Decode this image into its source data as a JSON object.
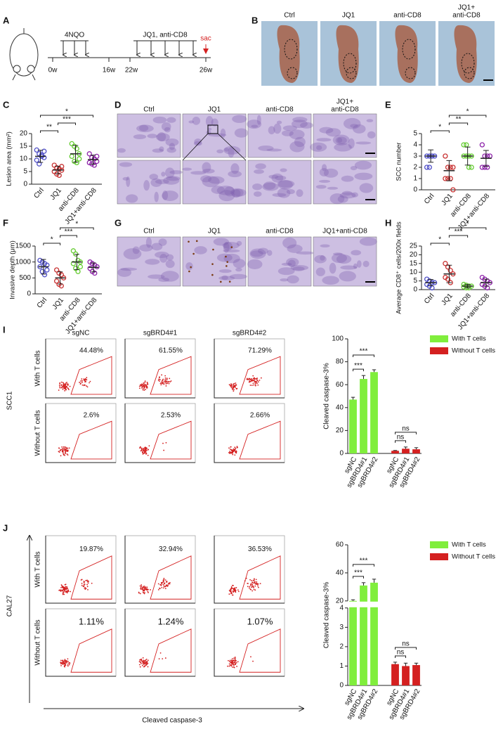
{
  "panel_labels": [
    "A",
    "B",
    "C",
    "D",
    "E",
    "F",
    "G",
    "H",
    "I",
    "J"
  ],
  "timeline": {
    "treatment_1": "4NQO",
    "treatment_2": "JQ1, anti-CD8",
    "endpoint": "sac",
    "weeks": [
      "0w",
      "16w",
      "22w",
      "26w"
    ]
  },
  "photos": {
    "labels": [
      "Ctrl",
      "JQ1",
      "anti-CD8",
      [
        "JQ1+",
        "anti-CD8"
      ]
    ]
  },
  "histology_he": {
    "labels": [
      "Ctrl",
      "JQ1",
      "anti-CD8",
      [
        "JQ1+",
        "anti-CD8"
      ]
    ]
  },
  "histology_ihc": {
    "labels": [
      "Ctrl",
      "JQ1",
      "anti-CD8",
      "JQ1+anti-CD8"
    ]
  },
  "flow": {
    "columns": [
      "sgNC",
      "sgBRD4#1",
      "sgBRD4#2"
    ],
    "rows": [
      "With T cells",
      "Without T cells"
    ],
    "x_label": "Cleaved caspase-3",
    "SCC1": {
      "cell_line": "SCC1",
      "percentages": [
        [
          "44.48%",
          "61.55%",
          "71.29%"
        ],
        [
          "2.6%",
          "2.53%",
          "2.66%"
        ]
      ]
    },
    "CAL27": {
      "cell_line": "CAL27",
      "percentages": [
        [
          "19.87%",
          "32.94%",
          "36.53%"
        ],
        [
          "1.11%",
          "1.24%",
          "1.07%"
        ]
      ]
    }
  },
  "chart_data": [
    {
      "type": "dotplot",
      "ylabel": "Lesion area (mm²)",
      "categories": [
        "Ctrl",
        "JQ1",
        "anti-CD8",
        "JQ1+anti-CD8"
      ],
      "colors": [
        "#5050c8",
        "#c83232",
        "#66cc33",
        "#8e24aa"
      ],
      "points": [
        [
          13.5,
          12,
          11.5,
          10.5,
          9.5,
          8,
          11,
          13
        ],
        [
          7.5,
          6.5,
          6,
          5.5,
          5,
          4,
          3.5,
          7
        ],
        [
          16,
          15,
          14,
          12,
          11,
          9,
          8.5,
          10
        ],
        [
          12,
          10.5,
          10,
          9,
          8.5,
          8,
          7.5,
          11
        ]
      ],
      "means": [
        11,
        5.6,
        12,
        9.7
      ],
      "sd": [
        2.4,
        1.5,
        3.3,
        1.8
      ],
      "ylim": [
        0,
        20
      ],
      "yticks": [
        0,
        5,
        10,
        15,
        20
      ],
      "significance": [
        {
          "from": "Ctrl",
          "to": "JQ1",
          "label": "**"
        },
        {
          "from": "JQ1",
          "to": "anti-CD8",
          "label": "***"
        },
        {
          "from": "Ctrl",
          "to": "JQ1+anti-CD8",
          "label": "*"
        }
      ]
    },
    {
      "type": "dotplot",
      "ylabel": "SCC number",
      "categories": [
        "Ctrl",
        "JQ1",
        "anti-CD8",
        "JQ1+anti-CD8"
      ],
      "colors": [
        "#5050c8",
        "#c83232",
        "#66cc33",
        "#8e24aa"
      ],
      "points": [
        [
          3,
          3,
          3,
          3,
          2,
          2,
          3
        ],
        [
          3,
          2,
          2,
          2,
          1,
          1,
          1,
          0
        ],
        [
          4,
          4,
          3,
          3,
          3,
          3,
          2,
          2
        ],
        [
          4,
          3,
          3,
          3,
          2,
          2,
          2
        ]
      ],
      "means": [
        3,
        1.7,
        3,
        2.8
      ],
      "sd": [
        0.55,
        0.9,
        0.8,
        0.7
      ],
      "ylim": [
        0,
        5
      ],
      "yticks": [
        0,
        1,
        2,
        3,
        4,
        5
      ],
      "significance": [
        {
          "from": "Ctrl",
          "to": "JQ1",
          "label": "*"
        },
        {
          "from": "JQ1",
          "to": "anti-CD8",
          "label": "**"
        },
        {
          "from": "JQ1",
          "to": "JQ1+anti-CD8",
          "label": "*"
        }
      ]
    },
    {
      "type": "dotplot",
      "ylabel": "Invasive depth (μm)",
      "categories": [
        "Ctrl",
        "JQ1",
        "anti-CD8",
        "JQ1+anti-CD8"
      ],
      "colors": [
        "#5050c8",
        "#c83232",
        "#66cc33",
        "#8e24aa"
      ],
      "points": [
        [
          1050,
          1000,
          950,
          900,
          850,
          700,
          600,
          750
        ],
        [
          750,
          650,
          600,
          500,
          400,
          300,
          250
        ],
        [
          1350,
          1250,
          1050,
          1000,
          950,
          800,
          700,
          850
        ],
        [
          1000,
          950,
          900,
          850,
          800,
          700,
          650
        ]
      ],
      "means": [
        850,
        500,
        1000,
        830
      ],
      "sd": [
        230,
        190,
        240,
        140
      ],
      "ylim": [
        0,
        1500
      ],
      "yticks": [
        0,
        500,
        1000,
        1500
      ],
      "significance": [
        {
          "from": "Ctrl",
          "to": "JQ1",
          "label": "*"
        },
        {
          "from": "JQ1",
          "to": "anti-CD8",
          "label": "***"
        },
        {
          "from": "JQ1",
          "to": "JQ1+anti-CD8",
          "label": "*"
        }
      ]
    },
    {
      "type": "dotplot",
      "ylabel": "Average CD8⁺ cells/200x fields",
      "categories": [
        "Ctrl",
        "JQ1",
        "anti-CD8",
        "JQ1+anti-CD8"
      ],
      "colors": [
        "#5050c8",
        "#c83232",
        "#66cc33",
        "#8e24aa"
      ],
      "points": [
        [
          6,
          5,
          4,
          4,
          3,
          2,
          1
        ],
        [
          15,
          13,
          11,
          9,
          7,
          6,
          4
        ],
        [
          3,
          2.5,
          2,
          2,
          1.5,
          1,
          1
        ],
        [
          7,
          6,
          5,
          4,
          3,
          2,
          1
        ]
      ],
      "means": [
        4,
        9,
        2,
        4
      ],
      "sd": [
        1.8,
        5,
        1,
        2
      ],
      "ylim": [
        0,
        25
      ],
      "yticks": [
        0,
        5,
        10,
        15,
        20,
        25
      ],
      "significance": [
        {
          "from": "Ctrl",
          "to": "JQ1",
          "label": "*"
        },
        {
          "from": "JQ1",
          "to": "anti-CD8",
          "label": "***"
        },
        {
          "from": "JQ1",
          "to": "JQ1+anti-CD8",
          "label": "*"
        }
      ]
    },
    {
      "type": "bar",
      "ylabel": "Cleaved caspase-3%",
      "categories": [
        "sgNC",
        "sgBRD4#1",
        "sgBRD4#2"
      ],
      "series": [
        {
          "name": "With T cells",
          "color": "#80ee3c",
          "values": [
            47,
            65,
            71
          ],
          "errors": [
            2,
            3,
            2
          ]
        },
        {
          "name": "Without T cells",
          "color": "#d42020",
          "values": [
            2.3,
            4.1,
            3.6
          ],
          "errors": [
            0.3,
            1.5,
            1.4
          ]
        }
      ],
      "ylim": [
        0,
        100
      ],
      "yticks": [
        0,
        20,
        40,
        60,
        80,
        100
      ],
      "significance": [
        {
          "series": "With T cells",
          "from": "sgNC",
          "to": "sgBRD4#1",
          "label": "***"
        },
        {
          "series": "With T cells",
          "from": "sgNC",
          "to": "sgBRD4#2",
          "label": "***"
        },
        {
          "series": "Without T cells",
          "from": "sgNC",
          "to": "sgBRD4#1",
          "label": "ns"
        },
        {
          "series": "Without T cells",
          "from": "sgNC",
          "to": "sgBRD4#2",
          "label": "ns"
        }
      ]
    },
    {
      "type": "bar",
      "ylabel": "Cleaved caspase-3%",
      "categories": [
        "sgNC",
        "sgBRD4#1",
        "sgBRD4#2"
      ],
      "series": [
        {
          "name": "With T cells",
          "color": "#80ee3c",
          "values": [
            20,
            31,
            33
          ],
          "errors": [
            0.8,
            2,
            2.5
          ]
        },
        {
          "name": "Without T cells",
          "color": "#d42020",
          "values": [
            1.1,
            1.0,
            1.05
          ],
          "errors": [
            0.1,
            0.15,
            0.1
          ]
        }
      ],
      "ylim": [
        0,
        60
      ],
      "axis_break": [
        4,
        20
      ],
      "yticks": [
        0,
        1,
        2,
        3,
        4,
        20,
        40,
        60
      ],
      "significance": [
        {
          "series": "With T cells",
          "from": "sgNC",
          "to": "sgBRD4#1",
          "label": "***"
        },
        {
          "series": "With T cells",
          "from": "sgNC",
          "to": "sgBRD4#2",
          "label": "***"
        },
        {
          "series": "Without T cells",
          "from": "sgNC",
          "to": "sgBRD4#1",
          "label": "ns"
        },
        {
          "series": "Without T cells",
          "from": "sgNC",
          "to": "sgBRD4#2",
          "label": "ns"
        }
      ]
    }
  ]
}
